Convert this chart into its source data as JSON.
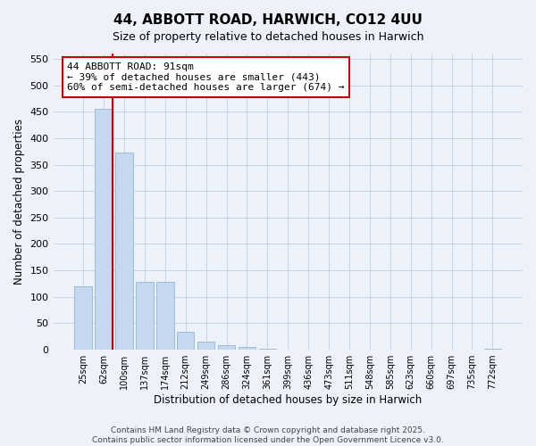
{
  "title1": "44, ABBOTT ROAD, HARWICH, CO12 4UU",
  "title2": "Size of property relative to detached houses in Harwich",
  "xlabel": "Distribution of detached houses by size in Harwich",
  "ylabel": "Number of detached properties",
  "categories": [
    "25sqm",
    "62sqm",
    "100sqm",
    "137sqm",
    "174sqm",
    "212sqm",
    "249sqm",
    "286sqm",
    "324sqm",
    "361sqm",
    "399sqm",
    "436sqm",
    "473sqm",
    "511sqm",
    "548sqm",
    "585sqm",
    "623sqm",
    "660sqm",
    "697sqm",
    "735sqm",
    "772sqm"
  ],
  "values": [
    120,
    456,
    373,
    128,
    128,
    34,
    15,
    8,
    5,
    2,
    0,
    0,
    0,
    0,
    0,
    0,
    0,
    0,
    0,
    0,
    2
  ],
  "bar_color": "#c5d8ef",
  "bar_edge_color": "#9bbcd8",
  "redline_color": "#cc0000",
  "redline_x": 1.425,
  "annotation_text": "44 ABBOTT ROAD: 91sqm\n← 39% of detached houses are smaller (443)\n60% of semi-detached houses are larger (674) →",
  "annotation_box_facecolor": "#ffffff",
  "annotation_box_edgecolor": "#cc0000",
  "footnote": "Contains HM Land Registry data © Crown copyright and database right 2025.\nContains public sector information licensed under the Open Government Licence v3.0.",
  "ylim": [
    0,
    560
  ],
  "yticks": [
    0,
    50,
    100,
    150,
    200,
    250,
    300,
    350,
    400,
    450,
    500,
    550
  ],
  "bg_color": "#edf1fa",
  "grid_color": "#c5ccdd",
  "title1_fontsize": 11,
  "title2_fontsize": 9,
  "xlabel_fontsize": 8.5,
  "ylabel_fontsize": 8.5,
  "xtick_fontsize": 7,
  "ytick_fontsize": 8,
  "footnote_fontsize": 6.5,
  "annotation_fontsize": 8
}
